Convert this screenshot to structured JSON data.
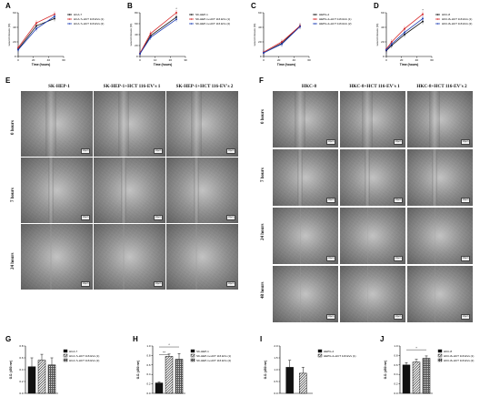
{
  "panels": {
    "A": {
      "label": "A",
      "ylabel": "wound closure (%)",
      "xlabel": "Time (hours)",
      "xticks": [
        "0",
        "20",
        "40",
        "60"
      ],
      "yticks": [
        "0",
        "20",
        "40",
        "60"
      ],
      "legend": [
        "HCA-7",
        "HCA-7+HCT 116 EVs (1)",
        "HCA-7+HCT 116 EVs (2)"
      ]
    },
    "B": {
      "label": "B",
      "ylabel": "wound closure (%)",
      "xlabel": "Time (hours)",
      "xticks": [
        "0",
        "10",
        "20",
        "30"
      ],
      "yticks": [
        "0",
        "20",
        "40",
        "60",
        "80"
      ],
      "legend": [
        "SK-HEP-1",
        "SK-HEP-1+HCT 116 EVs (1)",
        "SK-HEP-1+HCT 116 EVs (2)"
      ]
    },
    "C": {
      "label": "C",
      "ylabel": "wound closure (%)",
      "xlabel": "Time (hours)",
      "xticks": [
        "0",
        "20",
        "40",
        "60"
      ],
      "yticks": [
        "0",
        "20",
        "40",
        "60"
      ],
      "legend": [
        "HEPG-2",
        "HEPG-2+HCT 116 EVs (1)",
        "HEPG-2+HCT 116 EVs (2)"
      ]
    },
    "D": {
      "label": "D",
      "ylabel": "wound closure (%)",
      "xlabel": "Time (hours)",
      "xticks": [
        "0",
        "20",
        "40",
        "60"
      ],
      "yticks": [
        "0",
        "20",
        "40",
        "60"
      ],
      "legend": [
        "HKC-8",
        "HKC-8+HCT 116 EVs (1)",
        "HKC-8+HCT 116 EVs (2)"
      ]
    },
    "E": {
      "label": "E",
      "columns": [
        "SK-HEP-1",
        "SK-HEP-1+HCT 116-EV's 1",
        "SK-HEP-1+HCT 116-EV's 2"
      ],
      "rows": [
        "0 hours",
        "7 hours",
        "24 hours"
      ],
      "scalebar": "10µm"
    },
    "F": {
      "label": "F",
      "columns": [
        "HKC-8",
        "HKC-8+HCT 116-EV's 1",
        "HKC-8+HCT 116-EV's 2"
      ],
      "rows": [
        "0 hours",
        "7 hours",
        "24 hours",
        "48 hours"
      ],
      "scalebar": "10µm"
    },
    "G": {
      "label": "G",
      "ylabel": "O.D. (450 nm)",
      "yticks": [
        "0.0",
        "0.2",
        "0.4",
        "0.6",
        "0.8"
      ],
      "legend": [
        "HCA-7",
        "HCA-7+HCT 116 EVs (1)",
        "HCA-7+HCT 116 EVs (2)"
      ]
    },
    "H": {
      "label": "H",
      "ylabel": "O.D. (450 nm)",
      "yticks": [
        "0.0",
        "0.2",
        "0.4",
        "0.6",
        "0.8",
        "1.0"
      ],
      "sig1": "**",
      "sig2": "*",
      "legend": [
        "SK-HEP-1",
        "SK-HEP-1+HCT 116 EVs (1)",
        "SK-HEP-1+HCT 116 EVs (2)"
      ]
    },
    "I": {
      "label": "I",
      "ylabel": "O.D. (450 nm)",
      "yticks": [
        "0.0",
        "0.5",
        "1.0",
        "1.5",
        "2.0"
      ],
      "legend": [
        "HEPG-2",
        "HEPG-2+HCT 116 EVs (1)"
      ]
    },
    "J": {
      "label": "J",
      "ylabel": "O.D. (450 nm)",
      "yticks": [
        "0.0",
        "0.2",
        "0.4",
        "0.6",
        "0.8",
        "1.0"
      ],
      "sig1": "*",
      "legend": [
        "HKC-8",
        "HKC-8+HCT 116 EVs (1)",
        "HKC-8+HCT 116 EVs (2)"
      ]
    }
  },
  "chart_data": [
    {
      "panel": "A",
      "type": "line",
      "x": [
        0,
        24,
        48
      ],
      "series": [
        {
          "name": "HCA-7",
          "values": [
            10,
            42,
            52
          ]
        },
        {
          "name": "HCA-7+HCT 116 EVs (1)",
          "values": [
            12,
            46,
            58
          ]
        },
        {
          "name": "HCA-7+HCT 116 EVs (2)",
          "values": [
            9,
            38,
            55
          ]
        }
      ],
      "xlim": [
        0,
        60
      ],
      "ylim": [
        0,
        60
      ],
      "colors": [
        "#111111",
        "#d62728",
        "#1f3fb4"
      ]
    },
    {
      "panel": "B",
      "type": "line",
      "x": [
        0,
        7,
        24
      ],
      "series": [
        {
          "name": "SK-HEP-1",
          "values": [
            5,
            38,
            72
          ]
        },
        {
          "name": "SK-HEP-1+HCT 116 EVs (1)",
          "values": [
            6,
            42,
            80
          ]
        },
        {
          "name": "SK-HEP-1+HCT 116 EVs (2)",
          "values": [
            5,
            35,
            68
          ]
        }
      ],
      "xlim": [
        0,
        30
      ],
      "ylim": [
        0,
        80
      ],
      "colors": [
        "#111111",
        "#d62728",
        "#1f3fb4"
      ]
    },
    {
      "panel": "C",
      "type": "line",
      "x": [
        0,
        24,
        48
      ],
      "series": [
        {
          "name": "HEPG-2",
          "values": [
            5,
            18,
            42
          ]
        },
        {
          "name": "HEPG-2+HCT 116 EVs (1)",
          "values": [
            6,
            20,
            42
          ]
        },
        {
          "name": "HEPG-2+HCT 116 EVs (2)",
          "values": [
            5,
            17,
            41
          ]
        }
      ],
      "xlim": [
        0,
        60
      ],
      "ylim": [
        0,
        60
      ],
      "colors": [
        "#111111",
        "#d62728",
        "#1f3fb4"
      ]
    },
    {
      "panel": "D",
      "type": "line",
      "x": [
        0,
        7,
        24,
        48
      ],
      "series": [
        {
          "name": "HKC-8",
          "values": [
            8,
            15,
            30,
            48
          ]
        },
        {
          "name": "HKC-8+HCT 116 EVs (1)",
          "values": [
            10,
            20,
            38,
            58
          ]
        },
        {
          "name": "HKC-8+HCT 116 EVs (2)",
          "values": [
            9,
            17,
            33,
            52
          ]
        }
      ],
      "xlim": [
        0,
        60
      ],
      "ylim": [
        0,
        60
      ],
      "colors": [
        "#111111",
        "#d62728",
        "#1f3fb4"
      ]
    },
    {
      "panel": "G",
      "type": "bar",
      "values": [
        0.45,
        0.56,
        0.48
      ],
      "errors": [
        0.15,
        0.1,
        0.12
      ],
      "ylim": [
        0,
        0.8
      ]
    },
    {
      "panel": "H",
      "type": "bar",
      "values": [
        0.22,
        0.78,
        0.72
      ],
      "errors": [
        0.02,
        0.05,
        0.12
      ],
      "ylim": [
        0,
        1.0
      ]
    },
    {
      "panel": "I",
      "type": "bar",
      "values": [
        1.1,
        0.85
      ],
      "errors": [
        0.3,
        0.25
      ],
      "ylim": [
        0,
        2.0
      ]
    },
    {
      "panel": "J",
      "type": "bar",
      "values": [
        0.6,
        0.66,
        0.74
      ],
      "errors": [
        0.05,
        0.06,
        0.05
      ],
      "ylim": [
        0,
        1.0
      ]
    }
  ]
}
